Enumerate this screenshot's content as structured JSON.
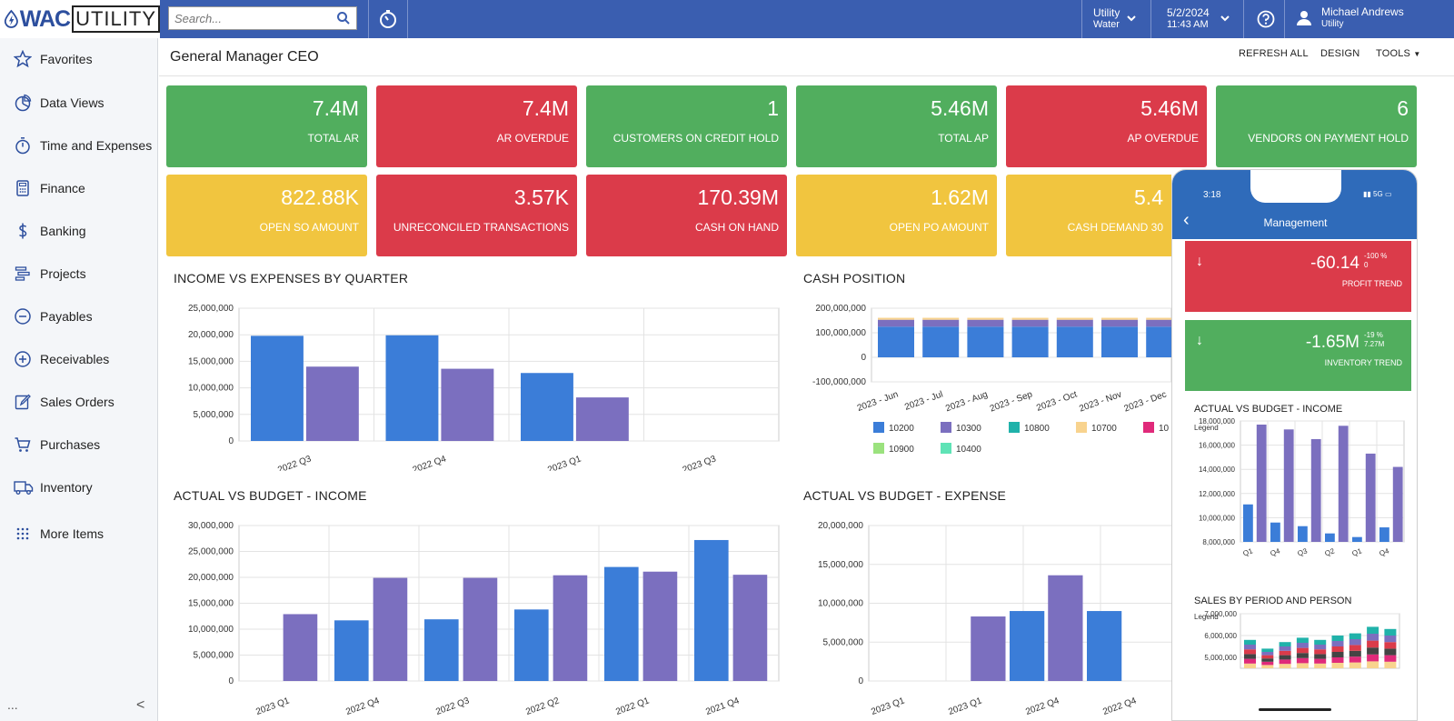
{
  "app": {
    "logo_text_1": "WAC",
    "logo_text_2": "UTILITY"
  },
  "topbar": {
    "search_placeholder": "Search...",
    "company_line1": "Utility",
    "company_line2": "Water",
    "date": "5/2/2024",
    "time": "11:43 AM",
    "user_name": "Michael Andrews",
    "user_org": "Utility"
  },
  "sidebar": {
    "items": [
      {
        "label": "Favorites",
        "icon": "star-icon"
      },
      {
        "label": "Data Views",
        "icon": "pie-chart-icon"
      },
      {
        "label": "Time and Expenses",
        "icon": "stopwatch-icon"
      },
      {
        "label": "Finance",
        "icon": "calculator-icon"
      },
      {
        "label": "Banking",
        "icon": "dollar-icon"
      },
      {
        "label": "Projects",
        "icon": "projects-icon"
      },
      {
        "label": "Payables",
        "icon": "minus-circle-icon"
      },
      {
        "label": "Receivables",
        "icon": "plus-circle-icon"
      },
      {
        "label": "Sales Orders",
        "icon": "edit-icon"
      },
      {
        "label": "Purchases",
        "icon": "cart-icon"
      },
      {
        "label": "Inventory",
        "icon": "truck-icon"
      },
      {
        "label": "More Items",
        "icon": "grid-dots-icon"
      }
    ],
    "footer_dots": "...",
    "collapse": "<"
  },
  "header": {
    "title": "General Manager CEO",
    "actions": [
      "REFRESH ALL",
      "DESIGN",
      "TOOLS"
    ]
  },
  "kpis": [
    {
      "value": "7.4M",
      "label": "TOTAL AR",
      "color": "green"
    },
    {
      "value": "7.4M",
      "label": "AR OVERDUE",
      "color": "red"
    },
    {
      "value": "1",
      "label": "CUSTOMERS ON CREDIT HOLD",
      "color": "green"
    },
    {
      "value": "5.46M",
      "label": "TOTAL AP",
      "color": "green"
    },
    {
      "value": "5.46M",
      "label": "AP OVERDUE",
      "color": "red"
    },
    {
      "value": "6",
      "label": "VENDORS ON PAYMENT HOLD",
      "color": "green"
    },
    {
      "value": "822.88K",
      "label": "OPEN SO AMOUNT",
      "color": "yellow"
    },
    {
      "value": "3.57K",
      "label": "UNRECONCILED TRANSACTIONS",
      "color": "red"
    },
    {
      "value": "170.39M",
      "label": "CASH ON HAND",
      "color": "red"
    },
    {
      "value": "1.62M",
      "label": "OPEN PO AMOUNT",
      "color": "yellow"
    },
    {
      "value": "5.4",
      "label": "CASH DEMAND 30",
      "color": "yellow"
    }
  ],
  "colors": {
    "blue_bar": "#3b7dd8",
    "purple_bar": "#7b6fbf",
    "green": "#51ae5e",
    "red": "#db3b4a",
    "yellow": "#f1c53f",
    "topbar": "#3a5eb0"
  },
  "chart_data": [
    {
      "id": "income_vs_expenses",
      "type": "bar",
      "title": "INCOME VS EXPENSES BY QUARTER",
      "categories": [
        "2022 Q3",
        "2022 Q4",
        "2023 Q1",
        "2023 Q3"
      ],
      "ylim": [
        0,
        25000000
      ],
      "yticks": [
        "25,000,000",
        "20,000,000",
        "15,000,000",
        "10,000,000",
        "5,000,000",
        "0"
      ],
      "series": [
        {
          "values": [
            19800000,
            19900000,
            12800000,
            0
          ],
          "color": "#3b7dd8"
        },
        {
          "values": [
            14000000,
            13600000,
            8200000,
            0
          ],
          "color": "#7b6fbf"
        }
      ]
    },
    {
      "id": "cash_position",
      "type": "bar",
      "title": "CASH POSITION",
      "categories": [
        "2023 - Jun",
        "2023 - Jul",
        "2023 - Aug",
        "2023 - Sep",
        "2023 - Oct",
        "2023 - Nov",
        "2023 - Dec"
      ],
      "ylim": [
        -100000000,
        200000000
      ],
      "yticks": [
        "200,000,000",
        "100,000,000",
        "0",
        "-100,000,000"
      ],
      "stack": [
        {
          "name": "10200",
          "value": 125000000,
          "color": "#3b7dd8"
        },
        {
          "name": "10300",
          "value": 28000000,
          "color": "#7b6fbf"
        },
        {
          "name": "10800",
          "value": 0,
          "color": "#20b2aa"
        },
        {
          "name": "10700",
          "value": 8000000,
          "color": "#f8d38e"
        },
        {
          "name": "10",
          "value": 0,
          "color": "#e02a7a"
        },
        {
          "name": "10900",
          "value": 0,
          "color": "#9be27e"
        },
        {
          "name": "10400",
          "value": 0,
          "color": "#5fe3b6"
        }
      ]
    },
    {
      "id": "actual_vs_budget_income",
      "type": "bar",
      "title": "ACTUAL VS BUDGET - INCOME",
      "categories": [
        "2023 Q1",
        "2022 Q4",
        "2022 Q3",
        "2022 Q2",
        "2022 Q1",
        "2021 Q4"
      ],
      "ylim": [
        0,
        30000000
      ],
      "yticks": [
        "30,000,000",
        "25,000,000",
        "20,000,000",
        "15,000,000",
        "10,000,000",
        "5,000,000",
        "0"
      ],
      "series": [
        {
          "values": [
            0,
            11700000,
            11900000,
            13800000,
            22000000,
            27200000
          ],
          "color": "#3b7dd8"
        },
        {
          "values": [
            12900000,
            19900000,
            19900000,
            20400000,
            21100000,
            20500000
          ],
          "color": "#7b6fbf"
        }
      ]
    },
    {
      "id": "actual_vs_budget_expense",
      "type": "bar",
      "title": "ACTUAL VS BUDGET - EXPENSE",
      "categories": [
        "2023 Q1",
        "2023 Q1",
        "2022 Q4",
        "2022 Q4"
      ],
      "ylim": [
        0,
        20000000
      ],
      "yticks": [
        "20,000,000",
        "15,000,000",
        "10,000,000",
        "5,000,000",
        "0"
      ],
      "series": [
        {
          "values": [
            0,
            0,
            9000000,
            9000000
          ],
          "color": "#3b7dd8"
        },
        {
          "values": [
            0,
            8300000,
            13600000,
            0
          ],
          "color": "#7b6fbf"
        }
      ]
    },
    {
      "id": "mobile_actual_vs_budget",
      "type": "bar",
      "title": "ACTUAL VS BUDGET - INCOME",
      "legend_label": "Legend",
      "categories": [
        "Q1",
        "Q4",
        "Q3",
        "Q2",
        "Q1",
        "Q4"
      ],
      "ylim": [
        8000000,
        18000000
      ],
      "yticks": [
        "18,000,000",
        "16,000,000",
        "14,000,000",
        "12,000,000",
        "10,000,000",
        "8,000,000"
      ],
      "series": [
        {
          "values": [
            11100000,
            9600000,
            9300000,
            8700000,
            8400000,
            9200000
          ],
          "color": "#3b7dd8"
        },
        {
          "values": [
            17700000,
            17300000,
            16500000,
            17600000,
            15300000,
            14200000
          ],
          "color": "#7b6fbf"
        }
      ]
    },
    {
      "id": "mobile_sales_by_period",
      "type": "bar",
      "title": "SALES BY PERIOD AND PERSON",
      "legend_label": "Legend",
      "ylim": [
        4500000,
        7000000
      ],
      "yticks": [
        "7,000,000",
        "6,000,000",
        "5,000,000"
      ],
      "totals": [
        5800000,
        5400000,
        5700000,
        5900000,
        5800000,
        6000000,
        6100000,
        6400000,
        6300000
      ]
    }
  ],
  "mobile": {
    "time": "3:18",
    "signal": "5G",
    "title": "Management",
    "cards": [
      {
        "value": "-60.14",
        "pct": "-100 %",
        "sub": "0",
        "label": "PROFIT TREND",
        "color": "red"
      },
      {
        "value": "-1.65M",
        "pct": "-19 %",
        "sub": "7.27M",
        "label": "INVENTORY TREND",
        "color": "green"
      }
    ]
  }
}
